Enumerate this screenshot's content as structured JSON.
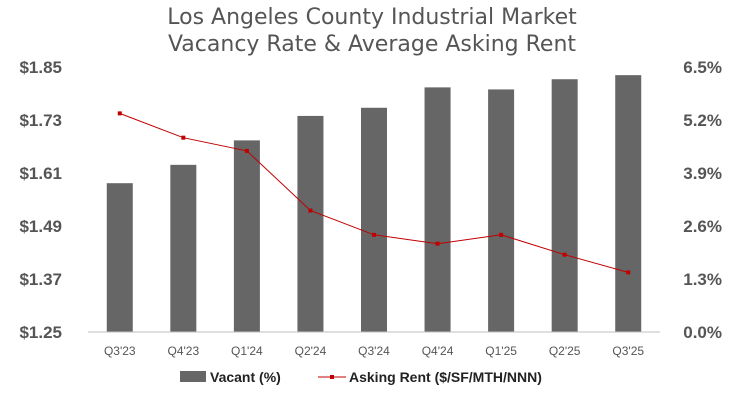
{
  "chart_data": {
    "type": "bar",
    "title_lines": [
      "Los Angeles County Industrial Market",
      "Vacancy Rate & Average Asking Rent"
    ],
    "categories": [
      "Q3'23",
      "Q4'23",
      "Q1'24",
      "Q2'24",
      "Q3'24",
      "Q4'24",
      "Q1'25",
      "Q2'25",
      "Q3'25"
    ],
    "series": [
      {
        "name": "Vacant (%)",
        "kind": "bar",
        "axis": "right",
        "color": "#666666",
        "values": [
          3.65,
          4.1,
          4.7,
          5.3,
          5.5,
          6.0,
          5.95,
          6.2,
          6.3
        ]
      },
      {
        "name": "Asking Rent ($/SF/MTH/NNN)",
        "kind": "line",
        "axis": "left",
        "color": "#c00000",
        "values": [
          1.745,
          1.69,
          1.66,
          1.525,
          1.47,
          1.45,
          1.47,
          1.425,
          1.385
        ]
      }
    ],
    "left_axis": {
      "ylim": [
        1.25,
        1.85
      ],
      "ticks": [
        1.25,
        1.37,
        1.49,
        1.61,
        1.73,
        1.85
      ],
      "tick_labels": [
        "$1.25",
        "$1.37",
        "$1.49",
        "$1.61",
        "$1.73",
        "$1.85"
      ]
    },
    "right_axis": {
      "ylim": [
        0,
        6.5
      ],
      "ticks": [
        0,
        1.3,
        2.6,
        3.9,
        5.2,
        6.5
      ],
      "tick_labels": [
        "0.0%",
        "1.3%",
        "2.6%",
        "3.9%",
        "5.2%",
        "6.5%"
      ]
    },
    "grid": false,
    "legend_position": "bottom"
  }
}
